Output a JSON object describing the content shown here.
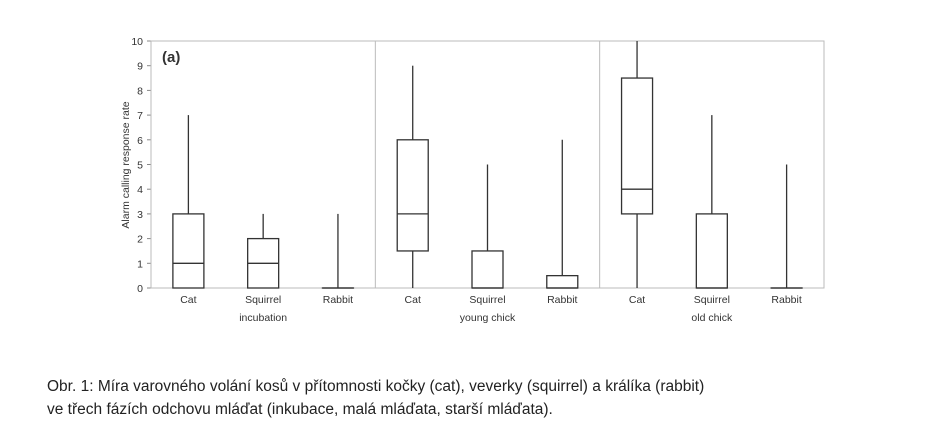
{
  "chart_data": {
    "type": "box",
    "panel_label": "(a)",
    "ylabel": "Alarm calling response rate",
    "ylim": [
      0,
      10
    ],
    "yticks": [
      "0",
      "1",
      "2",
      "3",
      "4",
      "5",
      "6",
      "7",
      "8",
      "9",
      "10"
    ],
    "groups": [
      {
        "name": "incubation",
        "categories": [
          {
            "label": "Cat",
            "min": 0,
            "q1": 0,
            "median": 1,
            "q3": 3,
            "max": 7
          },
          {
            "label": "Squirrel",
            "min": 0,
            "q1": 0,
            "median": 1,
            "q3": 2,
            "max": 3
          },
          {
            "label": "Rabbit",
            "min": 0,
            "q1": 0,
            "median": 0,
            "q3": 0,
            "max": 3
          }
        ]
      },
      {
        "name": "young chick",
        "categories": [
          {
            "label": "Cat",
            "min": 0,
            "q1": 1.5,
            "median": 3,
            "q3": 6,
            "max": 9
          },
          {
            "label": "Squirrel",
            "min": 0,
            "q1": 0,
            "median": 0,
            "q3": 1.5,
            "max": 5
          },
          {
            "label": "Rabbit",
            "min": 0,
            "q1": 0,
            "median": 0,
            "q3": 0.5,
            "max": 6
          }
        ]
      },
      {
        "name": "old chick",
        "categories": [
          {
            "label": "Cat",
            "min": 0,
            "q1": 3,
            "median": 4,
            "q3": 8.5,
            "max": 10
          },
          {
            "label": "Squirrel",
            "min": 0,
            "q1": 0,
            "median": 0,
            "q3": 3,
            "max": 7
          },
          {
            "label": "Rabbit",
            "min": 0,
            "q1": 0,
            "median": 0,
            "q3": 0,
            "max": 5
          }
        ]
      }
    ]
  },
  "caption": {
    "line1": "Obr. 1: Míra varovného volání kosů v přítomnosti kočky (cat), veverky (squirrel) a králíka (rabbit)",
    "line2": "ve třech fázích odchovu mláďat (inkubace, malá mláďata, starší mláďata)."
  }
}
